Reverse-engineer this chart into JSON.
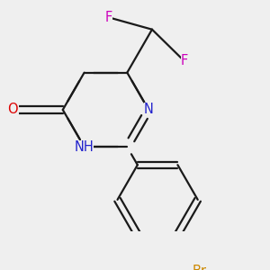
{
  "background_color": "#efefef",
  "bond_color": "#1a1a1a",
  "bond_width": 1.6,
  "atom_colors": {
    "N": "#2222cc",
    "O": "#dd0000",
    "F": "#cc00bb",
    "Br": "#cc8800"
  },
  "font_size": 10.5,
  "figsize": [
    3.0,
    3.0
  ],
  "dpi": 100,
  "xlim": [
    -1.6,
    1.9
  ],
  "ylim": [
    -1.7,
    1.6
  ]
}
